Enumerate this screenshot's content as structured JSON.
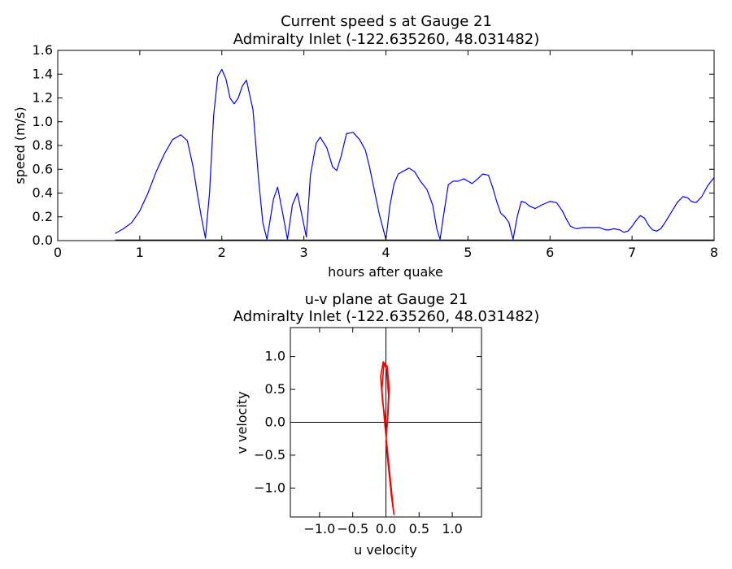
{
  "chart_data": [
    {
      "type": "line",
      "title_line1": "Current speed s at Gauge 21",
      "title_line2": "Admiralty Inlet  (-122.635260, 48.031482)",
      "xlabel": "hours after quake",
      "ylabel": "speed (m/s)",
      "xlim": [
        0,
        8
      ],
      "ylim": [
        0,
        1.6
      ],
      "xticks": [
        0,
        1,
        2,
        3,
        4,
        5,
        6,
        7,
        8
      ],
      "xtick_labels": [
        "0",
        "1",
        "2",
        "3",
        "4",
        "5",
        "6",
        "7",
        "8"
      ],
      "yticks": [
        0.0,
        0.2,
        0.4,
        0.6,
        0.8,
        1.0,
        1.2,
        1.4,
        1.6
      ],
      "ytick_labels": [
        "0.0",
        "0.2",
        "0.4",
        "0.6",
        "0.8",
        "1.0",
        "1.2",
        "1.4",
        "1.6"
      ],
      "grid": false,
      "series": [
        {
          "color": "#0000ff",
          "x": [
            0.7,
            0.8,
            0.9,
            1.0,
            1.1,
            1.2,
            1.3,
            1.4,
            1.5,
            1.58,
            1.65,
            1.7,
            1.75,
            1.8,
            1.85,
            1.9,
            1.95,
            2.0,
            2.05,
            2.1,
            2.15,
            2.2,
            2.25,
            2.3,
            2.38,
            2.45,
            2.5,
            2.55,
            2.63,
            2.68,
            2.75,
            2.8,
            2.86,
            2.92,
            2.98,
            3.03,
            3.08,
            3.15,
            3.2,
            3.28,
            3.35,
            3.4,
            3.45,
            3.52,
            3.6,
            3.68,
            3.75,
            3.8,
            3.86,
            3.92,
            4.0,
            4.05,
            4.1,
            4.15,
            4.2,
            4.28,
            4.35,
            4.42,
            4.5,
            4.57,
            4.62,
            4.66,
            4.7,
            4.76,
            4.82,
            4.88,
            4.95,
            5.0,
            5.05,
            5.12,
            5.18,
            5.25,
            5.3,
            5.35,
            5.4,
            5.45,
            5.5,
            5.55,
            5.6,
            5.65,
            5.7,
            5.75,
            5.82,
            5.9,
            6.0,
            6.08,
            6.15,
            6.2,
            6.25,
            6.32,
            6.4,
            6.5,
            6.6,
            6.68,
            6.72,
            6.78,
            6.85,
            6.9,
            6.95,
            7.0,
            7.05,
            7.1,
            7.15,
            7.2,
            7.25,
            7.3,
            7.35,
            7.4,
            7.48,
            7.55,
            7.62,
            7.68,
            7.72,
            7.78,
            7.85,
            7.92,
            8.0
          ],
          "y": [
            0.06,
            0.1,
            0.15,
            0.25,
            0.4,
            0.58,
            0.73,
            0.85,
            0.89,
            0.84,
            0.62,
            0.4,
            0.2,
            0.02,
            0.4,
            1.05,
            1.38,
            1.44,
            1.36,
            1.2,
            1.15,
            1.2,
            1.3,
            1.35,
            1.1,
            0.5,
            0.15,
            0.01,
            0.35,
            0.45,
            0.2,
            0.01,
            0.3,
            0.4,
            0.2,
            0.03,
            0.55,
            0.82,
            0.87,
            0.78,
            0.62,
            0.59,
            0.7,
            0.9,
            0.91,
            0.85,
            0.76,
            0.62,
            0.42,
            0.22,
            0.01,
            0.3,
            0.48,
            0.56,
            0.58,
            0.61,
            0.58,
            0.5,
            0.43,
            0.3,
            0.1,
            0.01,
            0.2,
            0.47,
            0.5,
            0.5,
            0.52,
            0.5,
            0.48,
            0.52,
            0.56,
            0.55,
            0.45,
            0.33,
            0.23,
            0.2,
            0.15,
            0.01,
            0.2,
            0.33,
            0.32,
            0.29,
            0.27,
            0.3,
            0.33,
            0.32,
            0.25,
            0.18,
            0.12,
            0.1,
            0.11,
            0.11,
            0.11,
            0.09,
            0.09,
            0.1,
            0.09,
            0.07,
            0.08,
            0.12,
            0.17,
            0.21,
            0.19,
            0.13,
            0.09,
            0.08,
            0.1,
            0.15,
            0.24,
            0.32,
            0.37,
            0.36,
            0.33,
            0.32,
            0.37,
            0.46,
            0.53
          ]
        }
      ]
    },
    {
      "type": "line",
      "title_line1": "u-v plane at Gauge 21",
      "title_line2": "Admiralty Inlet  (-122.635260, 48.031482)",
      "xlabel": "u velocity",
      "ylabel": "v velocity",
      "xlim": [
        -1.44,
        1.44
      ],
      "ylim": [
        -1.44,
        1.44
      ],
      "xticks": [
        -1.0,
        -0.5,
        0.0,
        0.5,
        1.0
      ],
      "xtick_labels": [
        "−1.0",
        "−0.5",
        "0.0",
        "0.5",
        "1.0"
      ],
      "yticks": [
        -1.0,
        -0.5,
        0.0,
        0.5,
        1.0
      ],
      "ytick_labels": [
        "−1.0",
        "−0.5",
        "0.0",
        "0.5",
        "1.0"
      ],
      "grid": false,
      "reference_lines": [
        "u=0",
        "v=0"
      ],
      "series": [
        {
          "color": "#ff0000",
          "x": [
            0.0,
            -0.05,
            -0.08,
            -0.04,
            0.02,
            0.05,
            0.03,
            0.0,
            0.04,
            0.08,
            0.12,
            0.1,
            0.06,
            0.02,
            -0.02,
            -0.06,
            -0.03,
            0.01,
            0.04,
            0.02,
            0.0
          ],
          "y": [
            0.0,
            0.3,
            0.7,
            0.92,
            0.85,
            0.5,
            0.1,
            -0.3,
            -0.7,
            -1.1,
            -1.4,
            -1.2,
            -0.8,
            -0.4,
            0.0,
            0.5,
            0.9,
            0.8,
            0.4,
            0.0,
            -0.2
          ]
        }
      ]
    }
  ]
}
